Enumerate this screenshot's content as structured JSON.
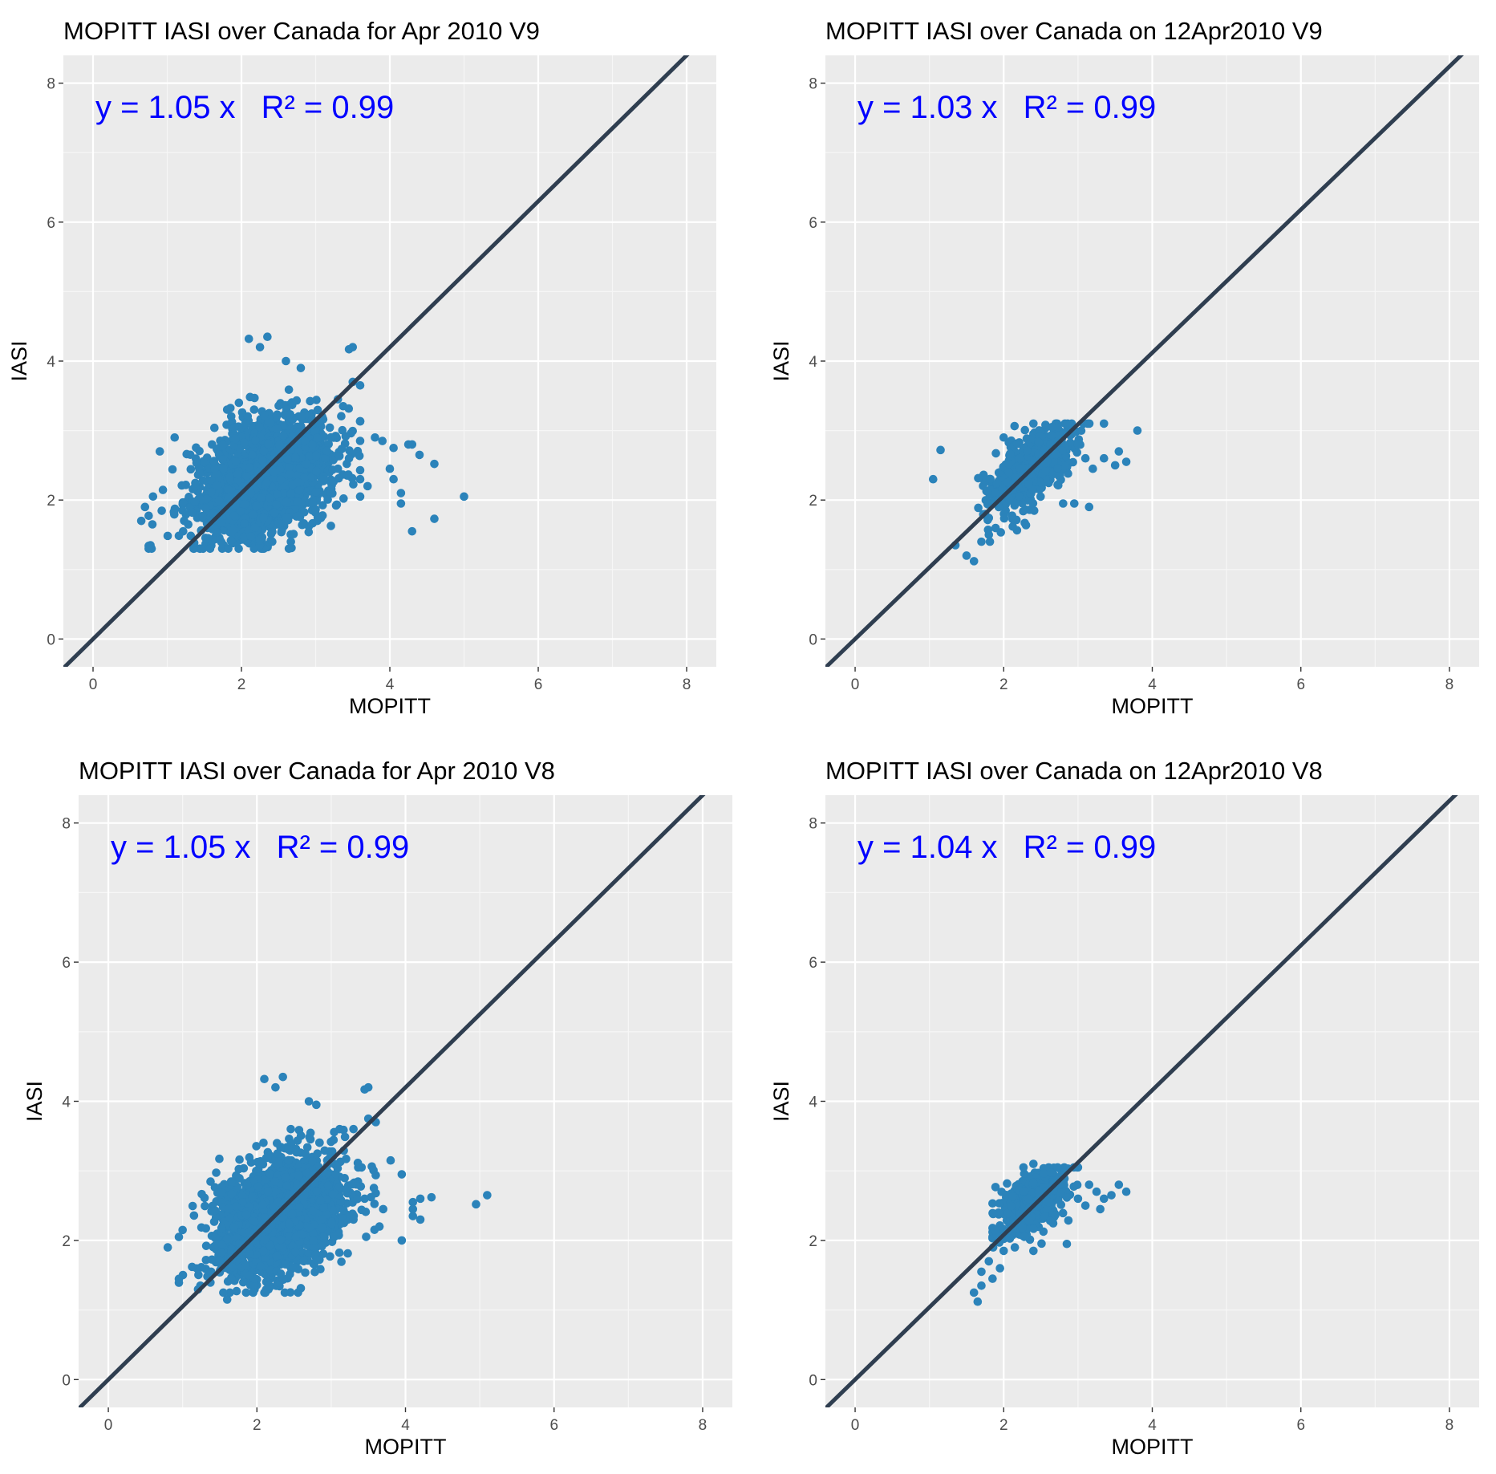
{
  "chart_data": [
    {
      "type": "scatter",
      "title": "MOPITT IASI over Canada for Apr 2010 V9",
      "xlabel": "MOPITT",
      "ylabel": "IASI",
      "xlim": [
        -0.4,
        8.4
      ],
      "ylim": [
        -0.4,
        8.4
      ],
      "xticks": [
        "0",
        "2",
        "4",
        "6",
        "8"
      ],
      "yticks": [
        "0",
        "2",
        "4",
        "6",
        "8"
      ],
      "grid": true,
      "annotation": {
        "equation": "y = 1.05 x",
        "r2": "R² = 0.99",
        "color": "#0000ff"
      },
      "fit_line": {
        "slope": 1.05,
        "intercept": 0,
        "color": "#2f3e50"
      },
      "point_color": "#2b83ba",
      "cloud": {
        "center": [
          2.3,
          2.3
        ],
        "count": 2200,
        "sd_x": 0.45,
        "sd_y": 0.42,
        "corr": 0.35,
        "xrange": [
          0.75,
          3.6
        ],
        "yrange": [
          1.3,
          3.6
        ]
      },
      "points": [
        [
          0.65,
          1.7
        ],
        [
          0.7,
          1.9
        ],
        [
          0.8,
          1.65
        ],
        [
          0.9,
          2.7
        ],
        [
          1.1,
          2.9
        ],
        [
          1.55,
          1.45
        ],
        [
          2.1,
          4.32
        ],
        [
          2.35,
          4.35
        ],
        [
          2.25,
          4.2
        ],
        [
          2.6,
          4.0
        ],
        [
          2.8,
          3.9
        ],
        [
          3.5,
          4.2
        ],
        [
          3.45,
          4.17
        ],
        [
          3.5,
          3.7
        ],
        [
          3.6,
          3.65
        ],
        [
          3.3,
          3.45
        ],
        [
          3.8,
          2.9
        ],
        [
          3.9,
          2.85
        ],
        [
          4.05,
          2.75
        ],
        [
          4.25,
          2.8
        ],
        [
          4.3,
          2.8
        ],
        [
          4.4,
          2.65
        ],
        [
          4.6,
          2.52
        ],
        [
          4.0,
          2.45
        ],
        [
          4.15,
          2.1
        ],
        [
          4.05,
          2.3
        ],
        [
          4.3,
          1.55
        ],
        [
          4.6,
          1.73
        ],
        [
          4.15,
          1.95
        ],
        [
          5.0,
          2.05
        ],
        [
          3.7,
          2.2
        ],
        [
          3.6,
          2.05
        ],
        [
          3.3,
          2.45
        ],
        [
          3.45,
          2.6
        ]
      ]
    },
    {
      "type": "scatter",
      "title": "MOPITT IASI over Canada on 12Apr2010 V9",
      "xlabel": "MOPITT",
      "ylabel": "IASI",
      "xlim": [
        -0.4,
        8.4
      ],
      "ylim": [
        -0.4,
        8.4
      ],
      "xticks": [
        "0",
        "2",
        "4",
        "6",
        "8"
      ],
      "yticks": [
        "0",
        "2",
        "4",
        "6",
        "8"
      ],
      "grid": true,
      "annotation": {
        "equation": "y = 1.03 x",
        "r2": "R² = 0.99",
        "color": "#0000ff"
      },
      "fit_line": {
        "slope": 1.03,
        "intercept": 0,
        "color": "#2f3e50"
      },
      "point_color": "#2b83ba",
      "cloud": {
        "center": [
          2.35,
          2.45
        ],
        "count": 650,
        "sd_x": 0.28,
        "sd_y": 0.3,
        "corr": 0.6,
        "xrange": [
          1.5,
          3.2
        ],
        "yrange": [
          1.4,
          3.1
        ]
      },
      "points": [
        [
          1.05,
          2.3
        ],
        [
          1.15,
          2.72
        ],
        [
          1.35,
          1.35
        ],
        [
          1.5,
          1.2
        ],
        [
          1.6,
          1.12
        ],
        [
          1.7,
          1.4
        ],
        [
          1.8,
          1.5
        ],
        [
          2.0,
          2.9
        ],
        [
          2.4,
          3.1
        ],
        [
          2.65,
          3.05
        ],
        [
          3.35,
          3.1
        ],
        [
          3.8,
          3.0
        ],
        [
          3.55,
          2.7
        ],
        [
          3.35,
          2.6
        ],
        [
          3.5,
          2.5
        ],
        [
          3.2,
          2.45
        ],
        [
          3.15,
          1.9
        ],
        [
          2.95,
          1.95
        ],
        [
          2.8,
          1.95
        ],
        [
          3.0,
          2.8
        ],
        [
          3.1,
          2.6
        ],
        [
          3.65,
          2.55
        ]
      ]
    },
    {
      "type": "scatter",
      "title": "MOPITT IASI over Canada for Apr 2010 V8",
      "xlabel": "MOPITT",
      "ylabel": "IASI",
      "xlim": [
        -0.4,
        8.4
      ],
      "ylim": [
        -0.4,
        8.4
      ],
      "xticks": [
        "0",
        "2",
        "4",
        "6",
        "8"
      ],
      "yticks": [
        "0",
        "2",
        "4",
        "6",
        "8"
      ],
      "grid": true,
      "annotation": {
        "equation": "y = 1.05 x",
        "r2": "R² = 0.99",
        "color": "#0000ff"
      },
      "fit_line": {
        "slope": 1.05,
        "intercept": 0,
        "color": "#2f3e50"
      },
      "point_color": "#2b83ba",
      "cloud": {
        "center": [
          2.3,
          2.35
        ],
        "count": 2200,
        "sd_x": 0.43,
        "sd_y": 0.42,
        "corr": 0.35,
        "xrange": [
          0.95,
          3.6
        ],
        "yrange": [
          1.25,
          3.6
        ]
      },
      "points": [
        [
          0.8,
          1.9
        ],
        [
          0.95,
          2.05
        ],
        [
          1.0,
          2.15
        ],
        [
          1.6,
          1.15
        ],
        [
          1.95,
          1.25
        ],
        [
          2.1,
          4.32
        ],
        [
          2.35,
          4.35
        ],
        [
          2.25,
          4.2
        ],
        [
          2.7,
          4.0
        ],
        [
          2.8,
          3.95
        ],
        [
          3.5,
          4.2
        ],
        [
          3.45,
          4.17
        ],
        [
          3.5,
          3.75
        ],
        [
          3.6,
          3.7
        ],
        [
          3.3,
          3.6
        ],
        [
          3.8,
          3.15
        ],
        [
          3.95,
          2.95
        ],
        [
          4.1,
          2.55
        ],
        [
          4.2,
          2.6
        ],
        [
          4.35,
          2.62
        ],
        [
          4.1,
          2.45
        ],
        [
          4.2,
          2.3
        ],
        [
          4.1,
          2.35
        ],
        [
          3.95,
          2.0
        ],
        [
          3.65,
          2.2
        ],
        [
          3.7,
          2.45
        ],
        [
          4.95,
          2.52
        ],
        [
          5.1,
          2.65
        ],
        [
          3.45,
          2.6
        ],
        [
          3.3,
          2.3
        ]
      ]
    },
    {
      "type": "scatter",
      "title": "MOPITT IASI over Canada on 12Apr2010 V8",
      "xlabel": "MOPITT",
      "ylabel": "IASI",
      "xlim": [
        -0.4,
        8.4
      ],
      "ylim": [
        -0.4,
        8.4
      ],
      "xticks": [
        "0",
        "2",
        "4",
        "6",
        "8"
      ],
      "yticks": [
        "0",
        "2",
        "4",
        "6",
        "8"
      ],
      "grid": true,
      "annotation": {
        "equation": "y = 1.04 x",
        "r2": "R² = 0.99",
        "color": "#0000ff"
      },
      "fit_line": {
        "slope": 1.04,
        "intercept": 0,
        "color": "#2f3e50"
      },
      "point_color": "#2b83ba",
      "cloud": {
        "center": [
          2.4,
          2.55
        ],
        "count": 550,
        "sd_x": 0.22,
        "sd_y": 0.22,
        "corr": 0.45,
        "xrange": [
          1.85,
          3.0
        ],
        "yrange": [
          1.9,
          3.05
        ]
      },
      "points": [
        [
          1.6,
          1.25
        ],
        [
          1.65,
          1.12
        ],
        [
          1.7,
          1.35
        ],
        [
          1.7,
          1.55
        ],
        [
          1.8,
          1.7
        ],
        [
          1.85,
          1.45
        ],
        [
          1.95,
          1.6
        ],
        [
          2.0,
          1.85
        ],
        [
          2.15,
          1.9
        ],
        [
          2.4,
          1.85
        ],
        [
          2.85,
          1.95
        ],
        [
          2.4,
          3.1
        ],
        [
          3.15,
          2.8
        ],
        [
          3.25,
          2.7
        ],
        [
          3.35,
          2.6
        ],
        [
          3.45,
          2.65
        ],
        [
          3.55,
          2.8
        ],
        [
          3.65,
          2.7
        ],
        [
          3.1,
          2.5
        ],
        [
          3.3,
          2.45
        ],
        [
          3.0,
          2.6
        ]
      ]
    }
  ]
}
